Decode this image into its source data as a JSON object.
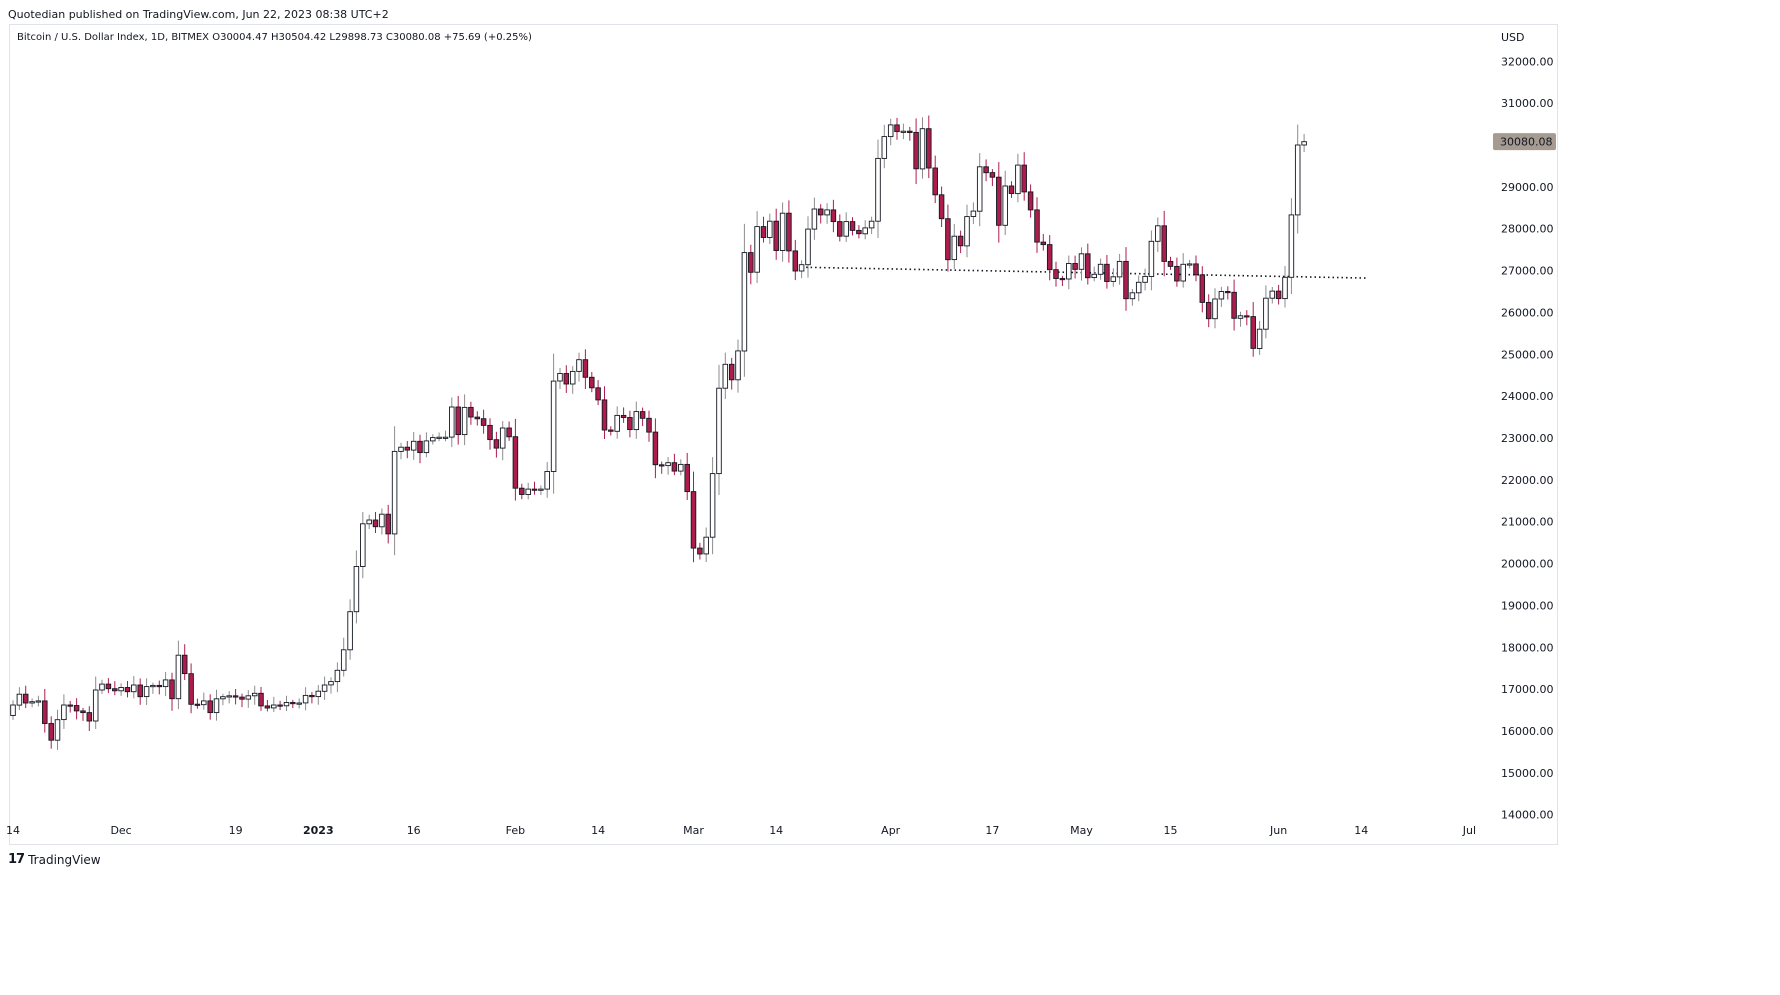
{
  "publish_line": "Quotedian published on TradingView.com, Jun 22, 2023 08:38 UTC+2",
  "brand": {
    "logo": "17",
    "name": "TradingView"
  },
  "legend": "Bitcoin / U.S. Dollar Index, 1D, BITMEX  O30004.47  H30504.42  L29898.73  C30080.08  +75.69 (+0.25%)",
  "colors": {
    "up": "#ffffff",
    "down": "#ad1d4b",
    "border": "#131722",
    "wick_up": "#8c8c8c",
    "wick_down": "#ad1d4b",
    "label_bg": "#a69b91",
    "grid": "#e0e3eb"
  },
  "chart_data": {
    "type": "candlestick",
    "title": "Bitcoin / U.S. Dollar Index, 1D, BITMEX",
    "currency": "USD",
    "last_price_label": "30080.08",
    "last_price": 30080.08,
    "ylim": [
      14000,
      32500
    ],
    "y_ticks": [
      14000,
      15000,
      16000,
      17000,
      18000,
      19000,
      20000,
      21000,
      22000,
      23000,
      24000,
      25000,
      26000,
      27000,
      28000,
      29000,
      30000,
      31000,
      32000
    ],
    "y_tick_labels": [
      "14000.00",
      "15000.00",
      "16000.00",
      "17000.00",
      "18000.00",
      "19000.00",
      "20000.00",
      "21000.00",
      "22000.00",
      "23000.00",
      "24000.00",
      "25000.00",
      "26000.00",
      "27000.00",
      "28000.00",
      "29000.00",
      "30000.00",
      "31000.00",
      "32000.00"
    ],
    "x_start": "2022-11-14",
    "x_ticks": [
      {
        "label": "14",
        "date": "2022-11-14",
        "bold": false
      },
      {
        "label": "Dec",
        "date": "2022-12-01",
        "bold": false
      },
      {
        "label": "19",
        "date": "2022-12-19",
        "bold": false
      },
      {
        "label": "2023",
        "date": "2023-01-01",
        "bold": true
      },
      {
        "label": "16",
        "date": "2023-01-16",
        "bold": false
      },
      {
        "label": "Feb",
        "date": "2023-02-01",
        "bold": false
      },
      {
        "label": "14",
        "date": "2023-02-14",
        "bold": false
      },
      {
        "label": "Mar",
        "date": "2023-03-01",
        "bold": false
      },
      {
        "label": "14",
        "date": "2023-03-14",
        "bold": false
      },
      {
        "label": "Apr",
        "date": "2023-04-01",
        "bold": false
      },
      {
        "label": "17",
        "date": "2023-04-17",
        "bold": false
      },
      {
        "label": "May",
        "date": "2023-05-01",
        "bold": false
      },
      {
        "label": "15",
        "date": "2023-05-15",
        "bold": false
      },
      {
        "label": "Jun",
        "date": "2023-06-01",
        "bold": false
      },
      {
        "label": "14",
        "date": "2023-06-14",
        "bold": false
      },
      {
        "label": "Jul",
        "date": "2023-07-01",
        "bold": false
      }
    ],
    "support_line": {
      "from": "2023-03-18",
      "to": "2023-06-15",
      "from_value": 27080,
      "to_value": 26820,
      "style": "dotted"
    },
    "closes": [
      16620,
      16880,
      16670,
      16700,
      16720,
      16180,
      15780,
      16270,
      16620,
      16610,
      16480,
      16440,
      16240,
      16980,
      17120,
      17010,
      16960,
      17040,
      16940,
      17100,
      16820,
      17060,
      17090,
      17060,
      17220,
      16770,
      17810,
      17370,
      16640,
      16630,
      16720,
      16440,
      16770,
      16820,
      16840,
      16810,
      16760,
      16840,
      16900,
      16600,
      16550,
      16620,
      16600,
      16680,
      16670,
      16670,
      16850,
      16820,
      16950,
      17100,
      17180,
      17450,
      17940,
      18850,
      19930,
      20950,
      21040,
      20880,
      21180,
      20710,
      22680,
      22780,
      22710,
      22920,
      22650,
      22930,
      23010,
      23020,
      23020,
      23740,
      23080,
      23730,
      23500,
      23460,
      23300,
      22960,
      22760,
      23240,
      23030,
      21800,
      21650,
      21780,
      21760,
      21780,
      22200,
      24360,
      24540,
      24290,
      24590,
      24870,
      24450,
      24200,
      23910,
      23190,
      23160,
      23540,
      23490,
      23200,
      23630,
      23470,
      23140,
      22360,
      22340,
      22410,
      22210,
      22370,
      21720,
      20370,
      20230,
      20630,
      22150,
      24190,
      24760,
      24390,
      25080,
      27430,
      26960,
      28050,
      27790,
      28180,
      27480,
      28370,
      27470,
      26990,
      27140,
      27990,
      28470,
      28330,
      28450,
      28170,
      27820,
      28170,
      27960,
      27880,
      28020,
      28180,
      29680,
      30200,
      30480,
      30320,
      30330,
      30300,
      29430,
      30390,
      29450,
      28810,
      28240,
      27260,
      27820,
      27590,
      28290,
      28420,
      29480,
      29340,
      29230,
      28080,
      29020,
      28840,
      29520,
      28880,
      28450,
      27680,
      27620,
      27020,
      26810,
      26800,
      27170,
      27030,
      27400,
      26830,
      26910,
      27150,
      26740,
      26850,
      27220,
      26330,
      26470,
      26720,
      26860,
      27700,
      28070,
      27220,
      27100,
      26750,
      27150,
      27160,
      26900,
      26240,
      25850,
      26320,
      26500,
      26480,
      25860,
      25920,
      25900,
      25140,
      25600,
      26340,
      26510,
      26330,
      26840,
      28330,
      30000,
      30080
    ]
  }
}
